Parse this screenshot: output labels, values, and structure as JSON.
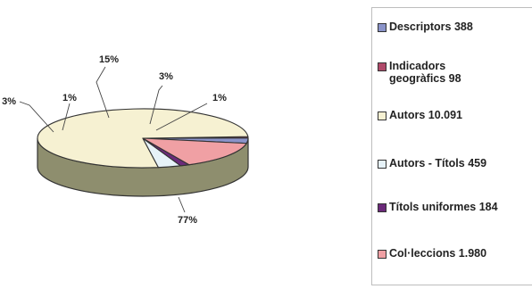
{
  "chart_data": {
    "type": "pie",
    "title": "",
    "slices": [
      {
        "name": "Descriptors",
        "legend_label": "Descriptors 388",
        "value": 388,
        "percent_label": "3%",
        "color": "#8a93c9"
      },
      {
        "name": "Indicadors geogràfics",
        "legend_label": "Indicadors\ngeogràfics  98",
        "value": 98,
        "percent_label": "1%",
        "color": "#b04a6a"
      },
      {
        "name": "Autors",
        "legend_label": "Autors   10.091",
        "value": 10091,
        "percent_label": "77%",
        "color": "#f6f1d2"
      },
      {
        "name": "Autors - Títols",
        "legend_label": "Autors - Títols   459",
        "value": 459,
        "percent_label": "3%",
        "color": "#e6f2f8"
      },
      {
        "name": "Títols uniformes",
        "legend_label": "Títols uniformes 184",
        "value": 184,
        "percent_label": "1%",
        "color": "#6b2a7a"
      },
      {
        "name": "Col·leccions",
        "legend_label": "Col·leccions   1.980",
        "value": 1980,
        "percent_label": "15%",
        "color": "#f0a0a4"
      }
    ],
    "side_color": "#8e8e6e",
    "legend_position": "right",
    "style": "3d-pie"
  }
}
